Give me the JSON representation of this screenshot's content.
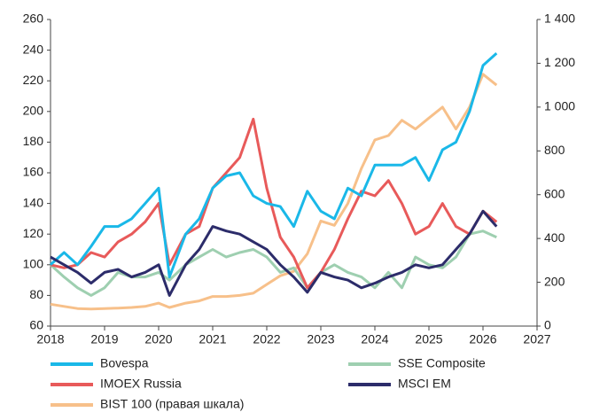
{
  "chart_data": {
    "type": "line",
    "x": [
      2018,
      2018.25,
      2018.5,
      2018.75,
      2019,
      2019.25,
      2019.5,
      2019.75,
      2020,
      2020.2,
      2020.5,
      2020.75,
      2021,
      2021.25,
      2021.5,
      2021.75,
      2022,
      2022.25,
      2022.5,
      2022.75,
      2023,
      2023.25,
      2023.5,
      2023.75,
      2024,
      2024.25,
      2024.5,
      2024.75,
      2025,
      2025.25,
      2025.5,
      2025.75,
      2026,
      2026.25
    ],
    "series": [
      {
        "name": "Bovespa",
        "color": "#1ab8e8",
        "axis": "y",
        "values": [
          100,
          108,
          100,
          112,
          125,
          125,
          130,
          140,
          150,
          92,
          120,
          130,
          150,
          158,
          160,
          145,
          140,
          138,
          125,
          148,
          135,
          130,
          150,
          145,
          165,
          165,
          165,
          170,
          155,
          175,
          180,
          200,
          230,
          238
        ]
      },
      {
        "name": "SSE Composite",
        "color": "#9ecfb0",
        "axis": "y",
        "values": [
          100,
          92,
          85,
          80,
          85,
          95,
          92,
          92,
          95,
          90,
          100,
          105,
          110,
          105,
          108,
          110,
          105,
          95,
          98,
          85,
          95,
          100,
          95,
          92,
          85,
          95,
          85,
          105,
          100,
          98,
          105,
          120,
          122,
          118
        ]
      },
      {
        "name": "IMOEX Russia",
        "color": "#e85a5a",
        "axis": "y",
        "values": [
          100,
          98,
          100,
          108,
          105,
          115,
          120,
          128,
          140,
          100,
          120,
          125,
          150,
          160,
          170,
          195,
          150,
          118,
          105,
          85,
          95,
          110,
          130,
          148,
          145,
          155,
          140,
          120,
          125,
          140,
          125,
          120,
          135,
          128
        ]
      },
      {
        "name": "MSCI EM",
        "color": "#2c2c6a",
        "axis": "y",
        "values": [
          105,
          100,
          95,
          88,
          95,
          97,
          92,
          95,
          100,
          80,
          100,
          110,
          125,
          122,
          120,
          115,
          110,
          100,
          92,
          82,
          95,
          92,
          90,
          85,
          88,
          92,
          95,
          100,
          98,
          100,
          110,
          120,
          135,
          125
        ]
      },
      {
        "name": "BIST 100 (правая шкала)",
        "color": "#f7c08a",
        "axis": "y2",
        "values": [
          100,
          90,
          80,
          78,
          80,
          82,
          85,
          90,
          105,
          85,
          105,
          115,
          135,
          135,
          140,
          150,
          190,
          230,
          250,
          330,
          480,
          460,
          560,
          720,
          850,
          870,
          940,
          900,
          950,
          1000,
          900,
          1000,
          1150,
          1100
        ]
      }
    ],
    "xlim": [
      2018,
      2027
    ],
    "xticks": [
      2018,
      2019,
      2020,
      2021,
      2022,
      2023,
      2024,
      2025,
      2026,
      2027
    ],
    "ylim": [
      60,
      260
    ],
    "yticks": [
      60,
      80,
      100,
      120,
      140,
      160,
      180,
      200,
      220,
      240,
      260
    ],
    "y2lim": [
      0,
      1400
    ],
    "y2ticks": [
      0,
      200,
      400,
      600,
      800,
      {
        "value": 1000,
        "label": "1 000"
      },
      {
        "value": 1200,
        "label": "1 200"
      },
      {
        "value": 1400,
        "label": "1 400"
      }
    ]
  }
}
